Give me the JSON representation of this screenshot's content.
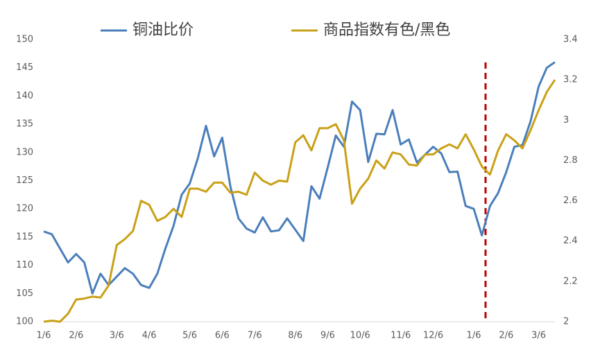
{
  "chart_data": {
    "type": "line",
    "categories": [
      "1/6",
      null,
      null,
      null,
      "2/6",
      null,
      null,
      null,
      null,
      "3/6",
      null,
      null,
      null,
      "4/6",
      null,
      null,
      null,
      null,
      "5/6",
      null,
      null,
      null,
      "6/6",
      null,
      null,
      null,
      "7/6",
      null,
      null,
      null,
      null,
      "8/6",
      null,
      null,
      null,
      "9/6",
      null,
      null,
      null,
      "10/6",
      null,
      null,
      null,
      null,
      "11/6",
      null,
      null,
      null,
      "12/6",
      null,
      null,
      null,
      null,
      "1/6",
      null,
      null,
      null,
      "2/6",
      null,
      null,
      null,
      "3/6",
      null,
      null
    ],
    "series": [
      {
        "name": "铜油比价",
        "color": "#4a7ebb",
        "values": [
          116,
          115.5,
          113,
          110.5,
          112,
          110.5,
          105,
          108.5,
          106.5,
          108,
          109.5,
          108.5,
          106.5,
          106,
          108.5,
          113,
          117,
          122.5,
          124.5,
          129,
          134.7,
          129.3,
          132.6,
          124,
          118.3,
          116.5,
          115.8,
          118.5,
          116,
          116.2,
          118.3,
          116.3,
          114.3,
          124,
          121.8,
          127.3,
          133,
          131,
          139,
          137.5,
          128.3,
          133.3,
          133.2,
          137.5,
          131.4,
          132.3,
          128.2,
          129.6,
          131,
          129.8,
          126.5,
          126.6,
          120.5,
          120,
          115.3,
          120.5,
          122.8,
          126.5,
          131,
          131.3,
          135.5,
          141.7,
          145,
          146
        ]
      },
      {
        "name": "商品指数有色/黑色",
        "color": "#c9a016",
        "axis": "y2",
        "values": [
          2.0,
          2.005,
          2.0,
          2.04,
          2.11,
          2.115,
          2.125,
          2.12,
          2.18,
          2.38,
          2.41,
          2.45,
          2.6,
          2.58,
          2.5,
          2.52,
          2.56,
          2.52,
          2.66,
          2.66,
          2.645,
          2.69,
          2.69,
          2.64,
          2.645,
          2.63,
          2.74,
          2.7,
          2.68,
          2.7,
          2.695,
          2.89,
          2.925,
          2.85,
          2.96,
          2.96,
          2.98,
          2.9,
          2.585,
          2.66,
          2.71,
          2.8,
          2.76,
          2.84,
          2.83,
          2.78,
          2.775,
          2.83,
          2.83,
          2.86,
          2.88,
          2.86,
          2.93,
          2.855,
          2.77,
          2.73,
          2.85,
          2.93,
          2.9,
          2.86,
          2.95,
          3.05,
          3.14,
          3.2
        ]
      }
    ],
    "ylim": [
      100,
      150
    ],
    "yticks": [
      100,
      105,
      110,
      115,
      120,
      125,
      130,
      135,
      140,
      145,
      150
    ],
    "y2lim": [
      2,
      3.4
    ],
    "y2ticks": [
      2,
      2.2,
      2.4,
      2.6,
      2.8,
      3,
      3.2,
      3.4
    ]
  }
}
